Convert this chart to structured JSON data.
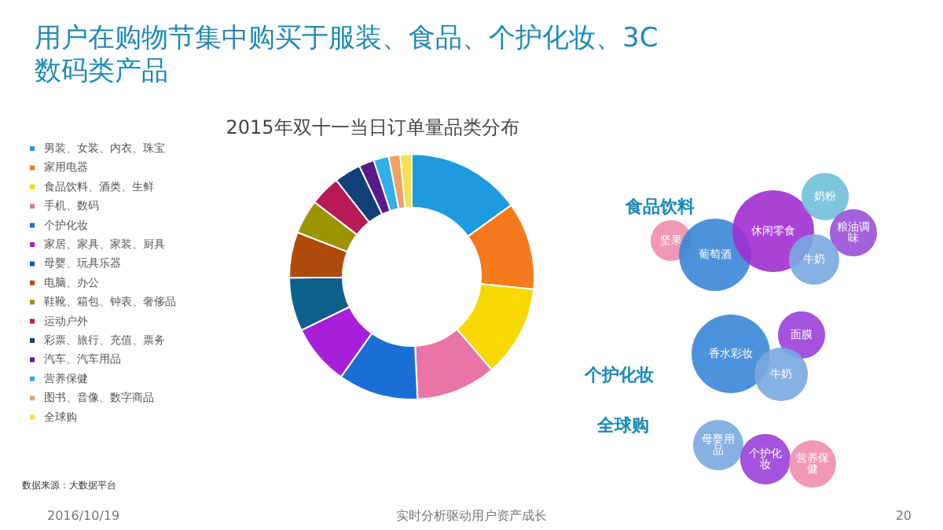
{
  "chart_data": [
    {
      "type": "donut",
      "title": "2015年双十一当日订单量品类分布",
      "categories": [
        "男装、女装、内衣、珠宝",
        "家用电器",
        "食品饮料、酒类、生鲜",
        "手机、数码",
        "个护化妆",
        "家居、家具、家装、厨具",
        "母婴、玩具乐器",
        "电脑、办公",
        "鞋靴、箱包、钟表、奢侈品",
        "运动户外",
        "彩票、旅行、充值、票务",
        "汽车、汽车用品",
        "营养保健",
        "图书、音像、数字商品",
        "全球购"
      ],
      "values": [
        15,
        11.5,
        12,
        10.5,
        10.5,
        8,
        7,
        6,
        4.5,
        4,
        3.5,
        2,
        2,
        1.5,
        1.5
      ],
      "colors": [
        "#1e9ae0",
        "#f57a1c",
        "#f7d800",
        "#e874a8",
        "#1a6fd6",
        "#a81fd9",
        "#0f5f8c",
        "#b04a0c",
        "#9c9400",
        "#b81a55",
        "#14407a",
        "#5a1a8c",
        "#2fb0e8",
        "#f0a060",
        "#f5e050"
      ],
      "legend": "left",
      "annotations": [
        "数据来源：大数据平台"
      ]
    },
    {
      "type": "other",
      "title": "用户在购物节集中购买于服装、食品、个护化妆、3C数码类产品",
      "annotations": [
        "食品饮料",
        "个护化妆",
        "全球购",
        "坚果",
        "葡萄酒",
        "休闲零食",
        "奶粉",
        "粮油调味",
        "牛奶",
        "香水彩妆",
        "面膜",
        "牛奶",
        "母婴用品",
        "个护化妆",
        "营养保健",
        "2016/10/19",
        "实时分析驱动用户资产成长",
        "20"
      ]
    }
  ]
}
